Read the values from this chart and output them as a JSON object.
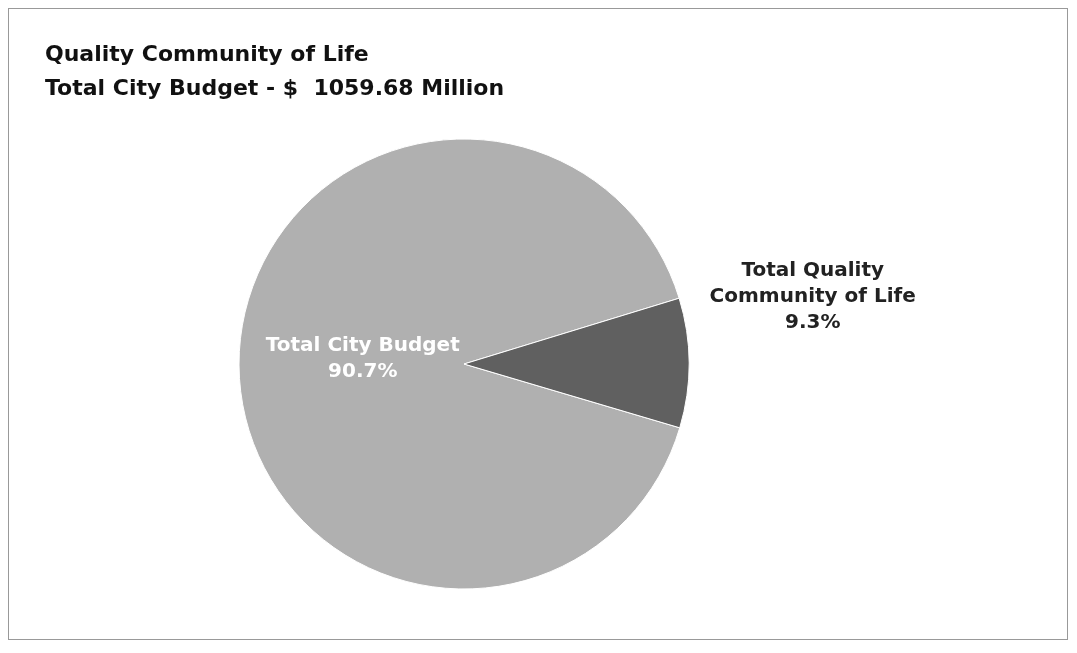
{
  "chart_data": {
    "type": "pie",
    "title": "Quality Community of Life",
    "subtitle": "Total City Budget - $  1059.68 Million",
    "categories": [
      "Total City Budget",
      "Total Quality Community of Life"
    ],
    "values": [
      90.7,
      9.3
    ],
    "colors": [
      "#b0b0b0",
      "#606060"
    ],
    "value_labels": [
      "90.7%",
      "9.3%"
    ]
  }
}
